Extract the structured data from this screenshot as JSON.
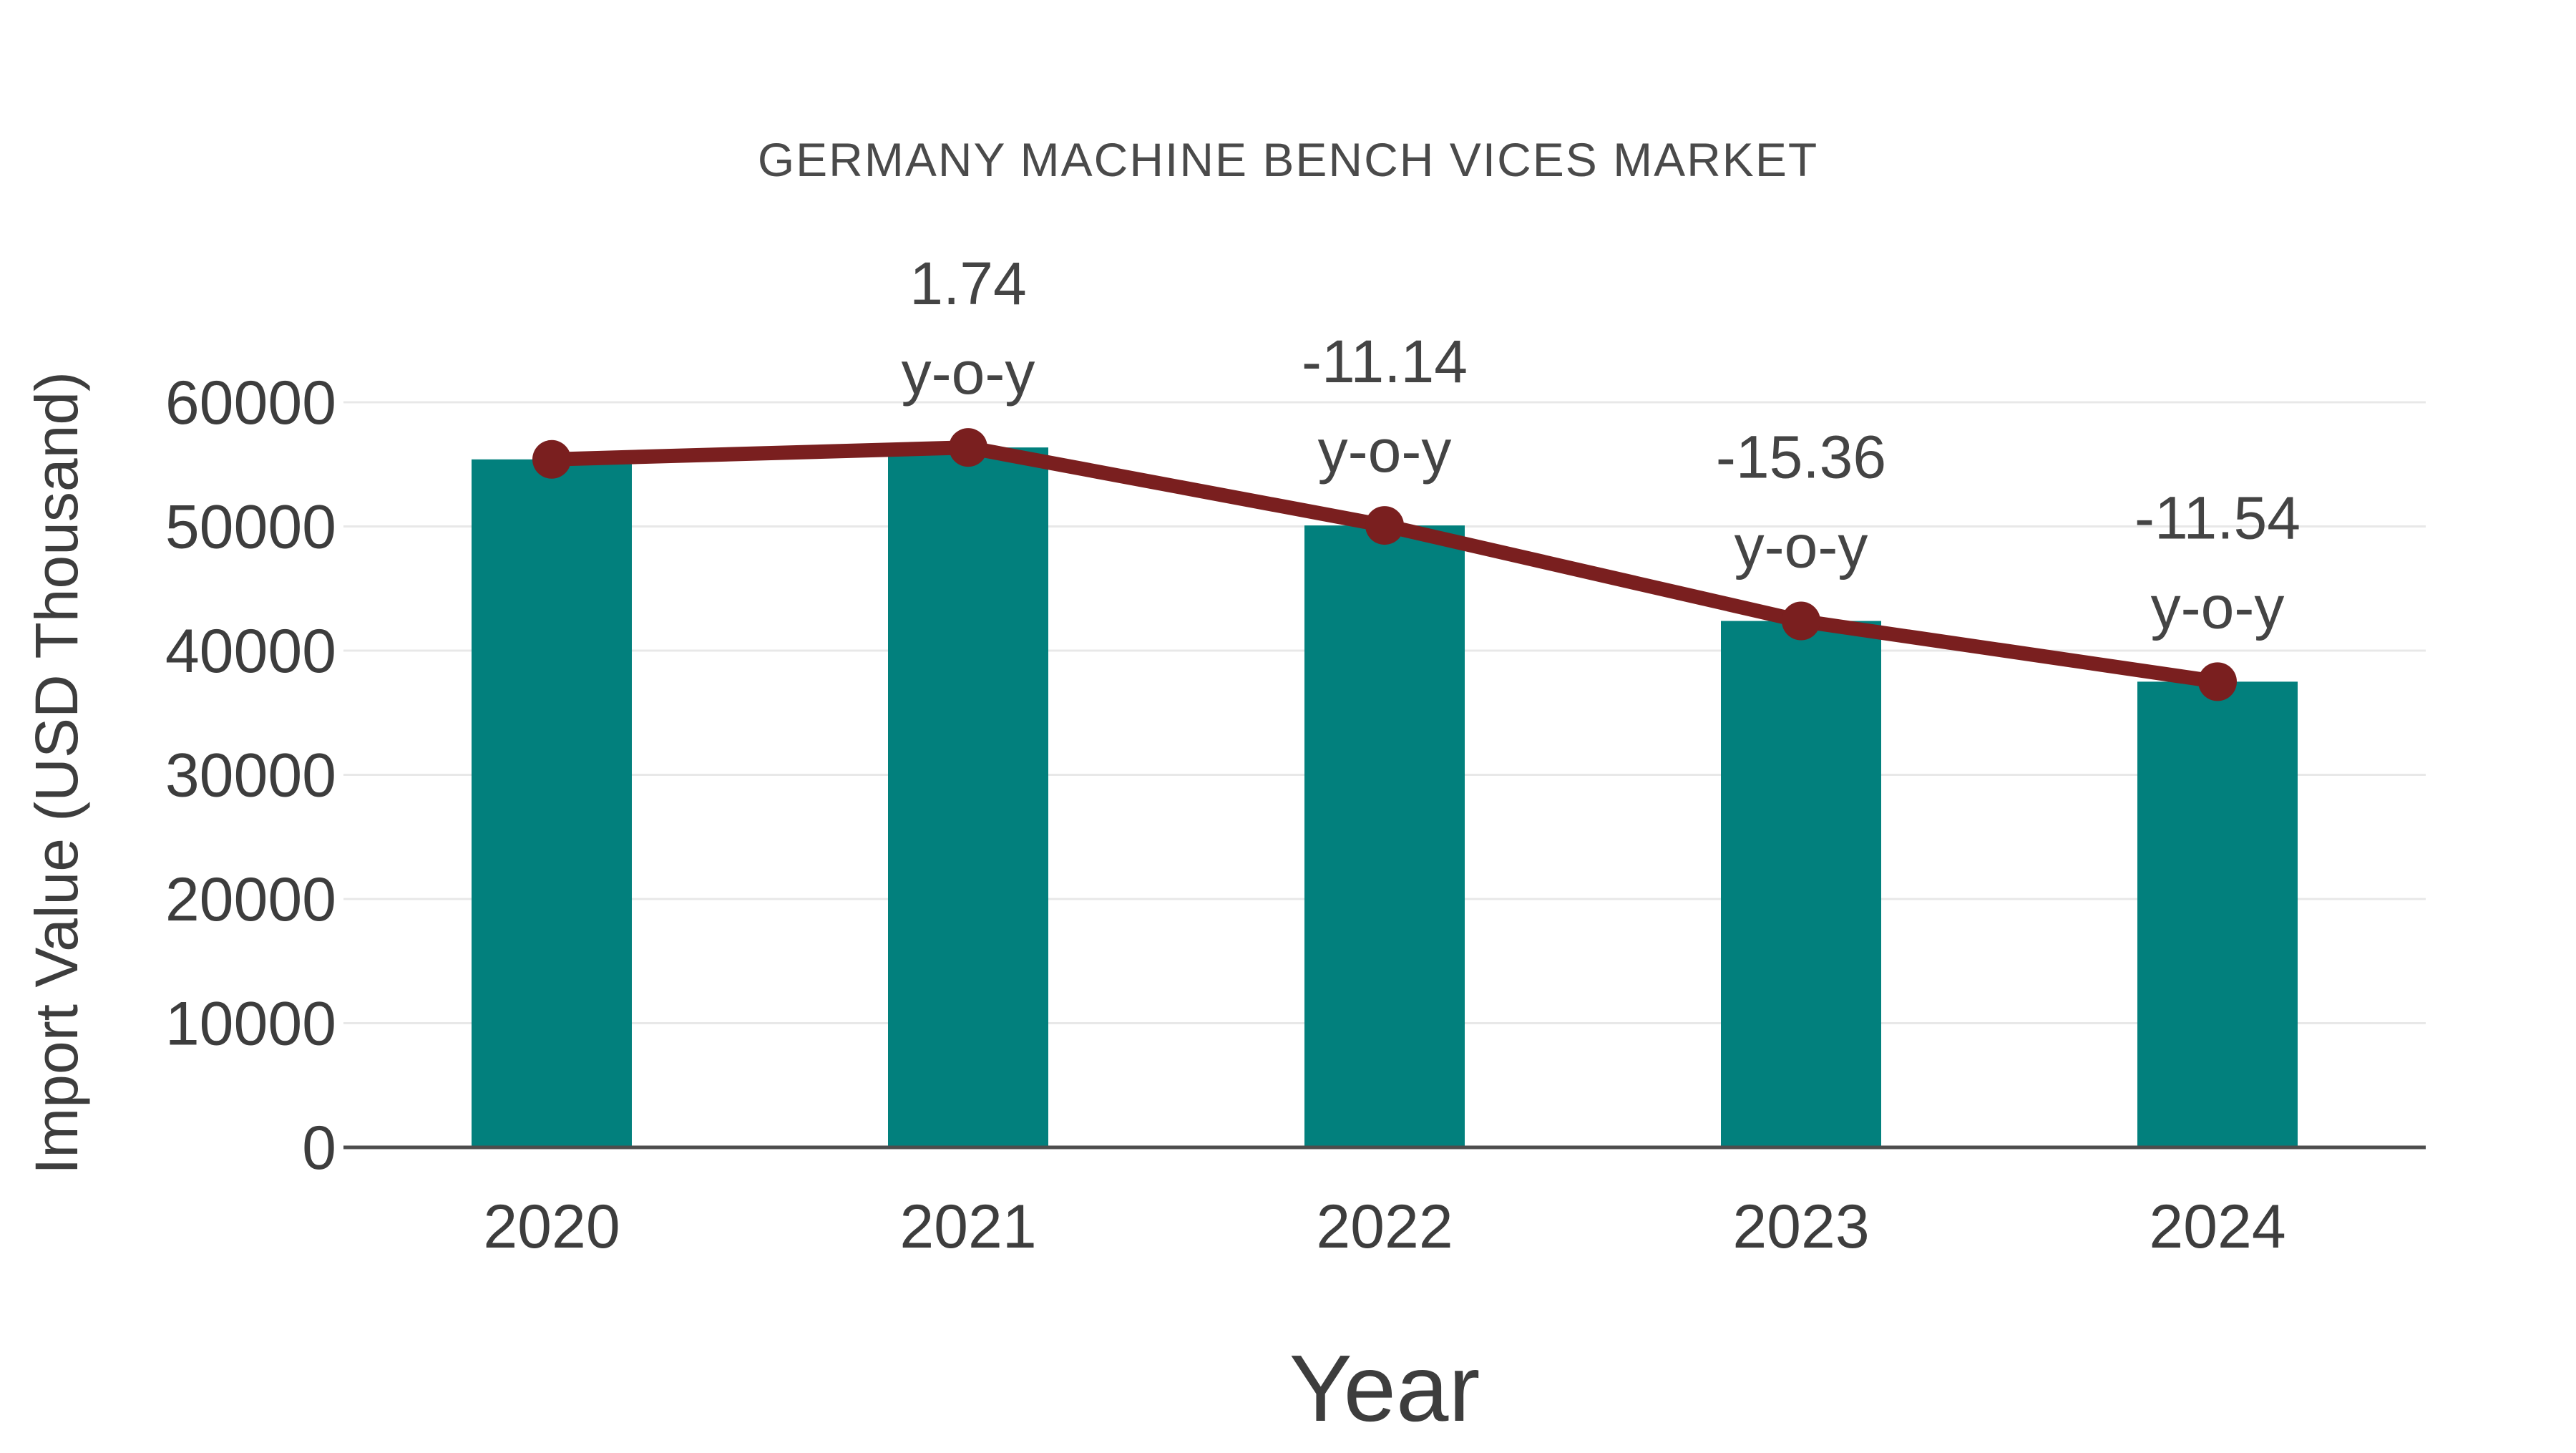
{
  "chart_data": {
    "type": "bar",
    "title": "GERMANY MACHINE BENCH VICES MARKET",
    "xlabel": "Year",
    "ylabel": "Import Value (USD Thousand)",
    "categories": [
      "2020",
      "2021",
      "2022",
      "2023",
      "2024"
    ],
    "series": [
      {
        "name": "Import Value bars",
        "type": "bar",
        "values": [
          55400,
          56360,
          50080,
          42390,
          37500
        ]
      },
      {
        "name": "Import Value trend line",
        "type": "line",
        "values": [
          55400,
          56360,
          50080,
          42390,
          37500
        ]
      }
    ],
    "annotations": [
      {
        "category": "2021",
        "value": "1.74",
        "suffix": "y-o-y"
      },
      {
        "category": "2022",
        "value": "-11.14",
        "suffix": "y-o-y"
      },
      {
        "category": "2023",
        "value": "-15.36",
        "suffix": "y-o-y"
      },
      {
        "category": "2024",
        "value": "-11.54",
        "suffix": "y-o-y"
      }
    ],
    "yticks": [
      0,
      10000,
      20000,
      30000,
      40000,
      50000,
      60000
    ],
    "ylim": [
      0,
      60000
    ],
    "grid": true,
    "legend": "none",
    "colors": {
      "bar": "#02807D",
      "line": "#7A1F1F",
      "marker": "#7A1F1F",
      "gridline": "#E8E8E8",
      "axis_line": "#4D4D4D",
      "background": "#FFFFFF"
    }
  }
}
